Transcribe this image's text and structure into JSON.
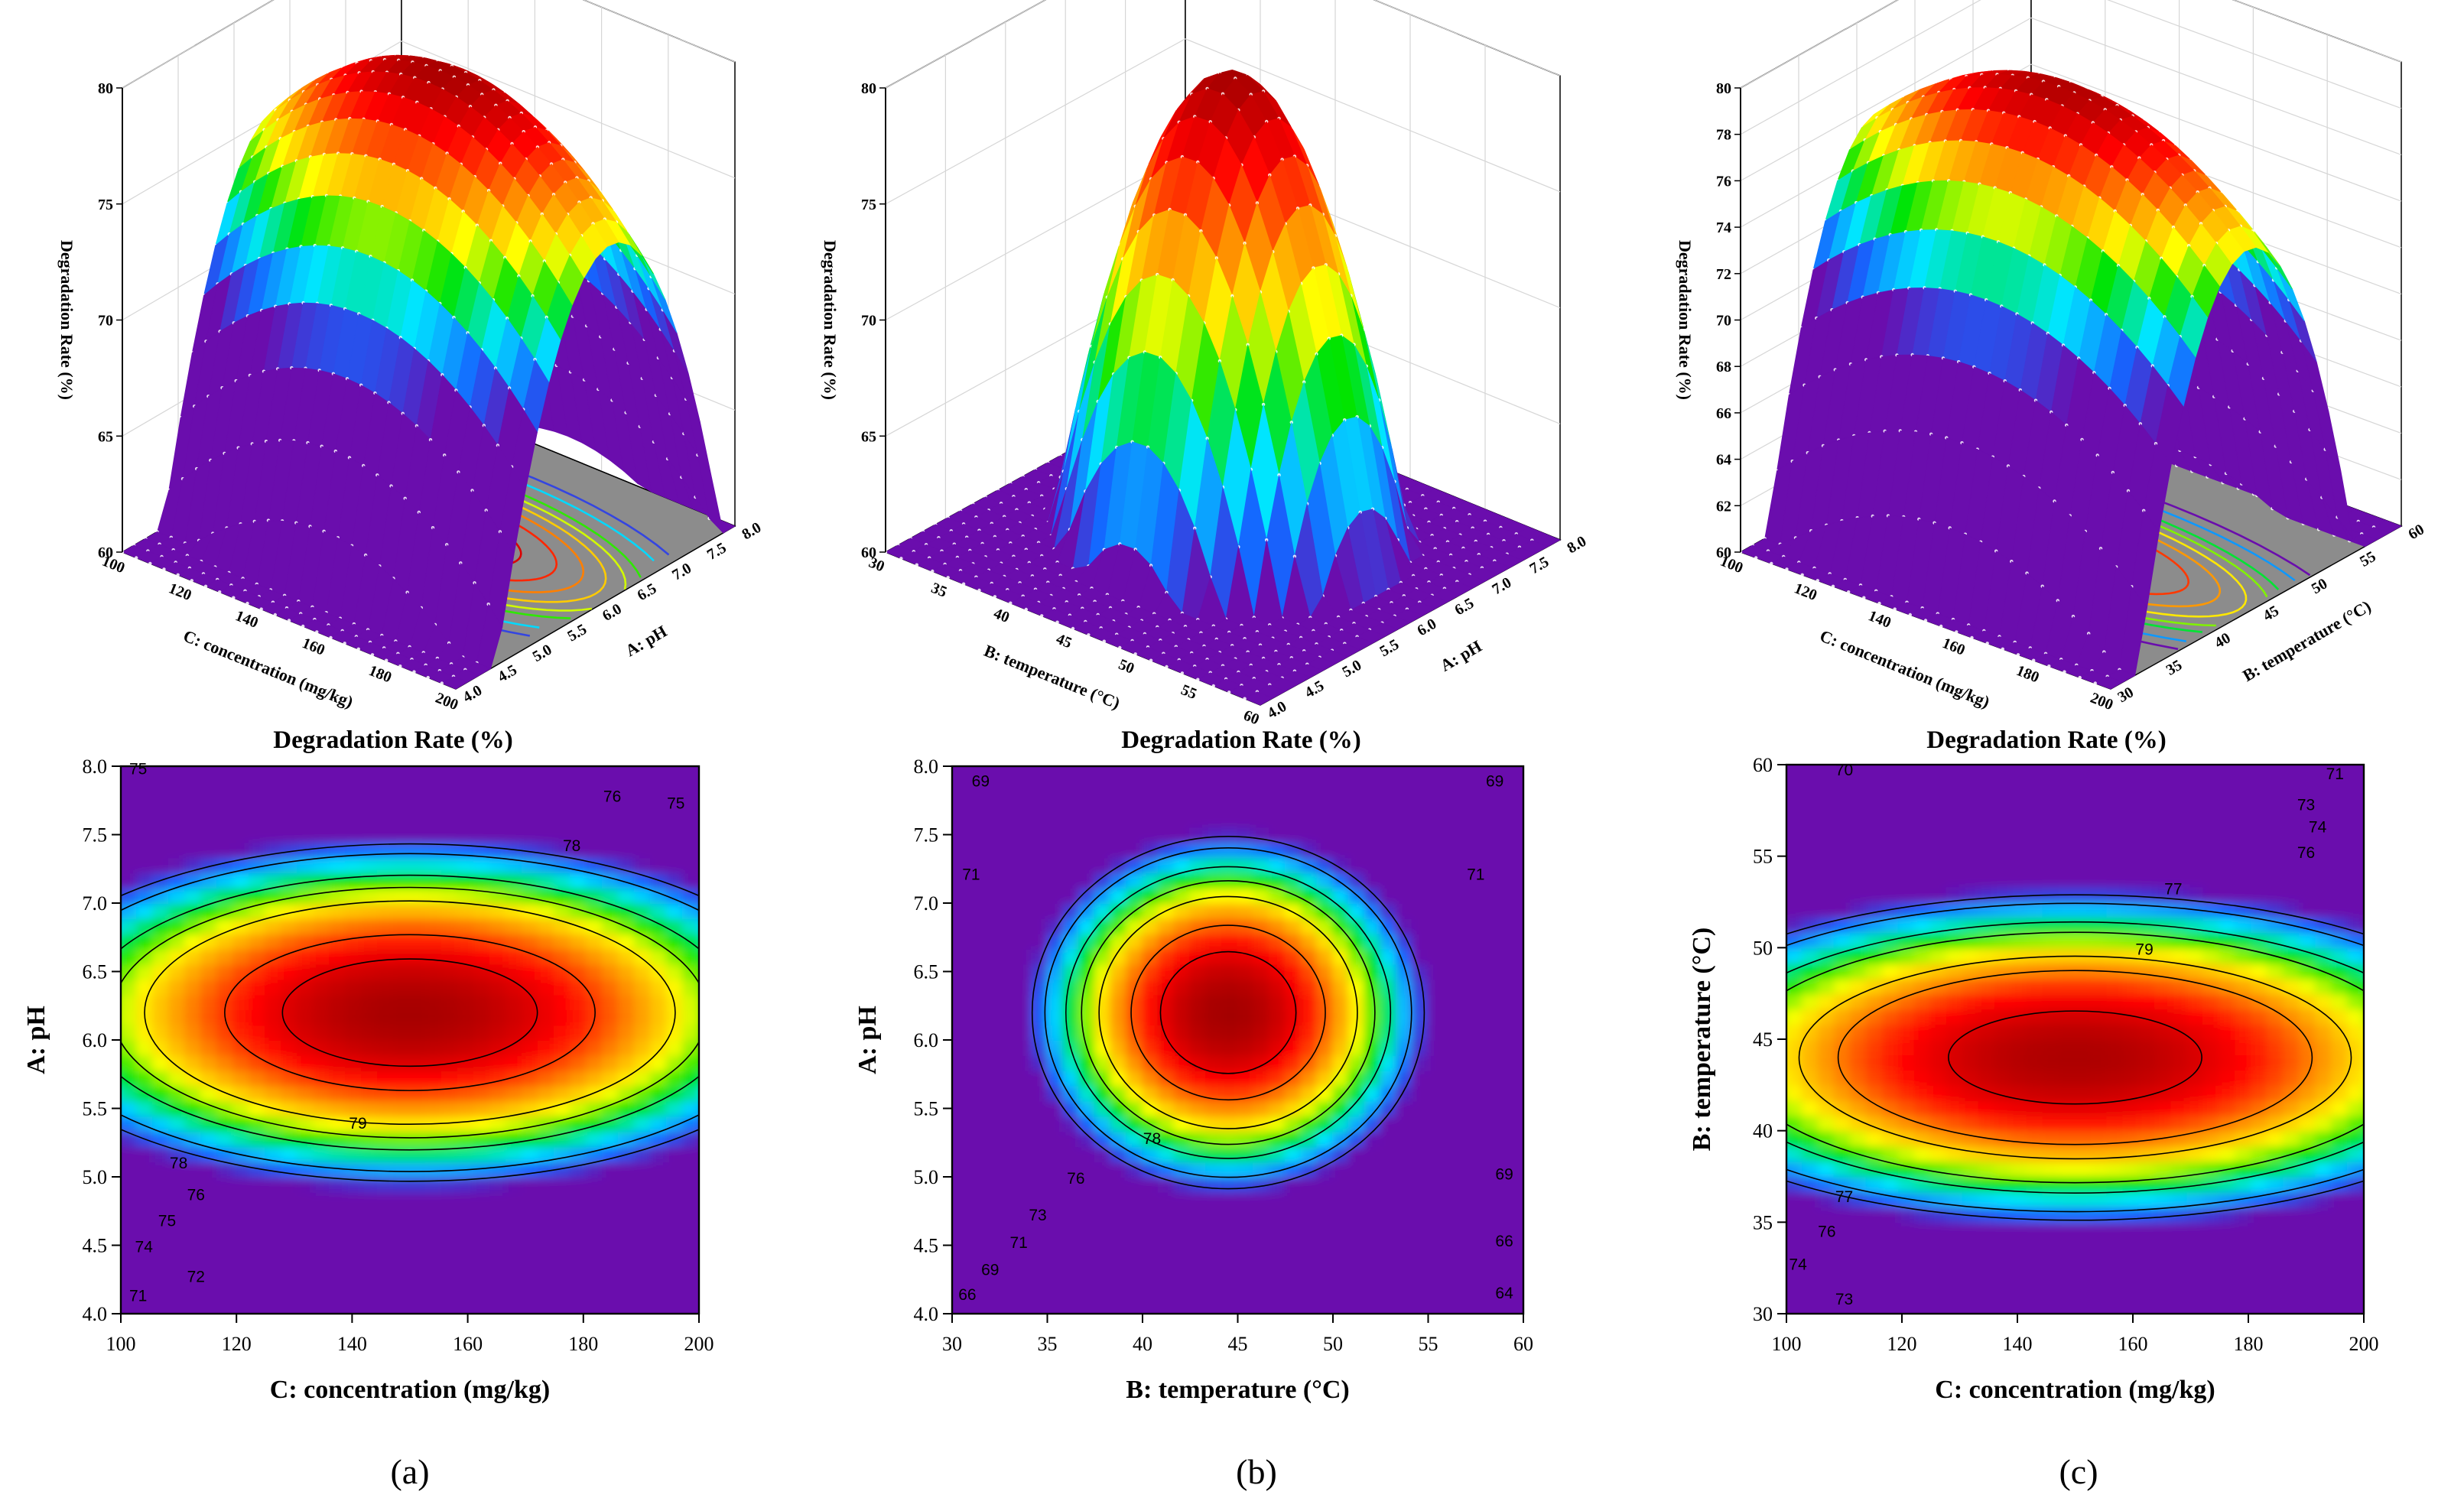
{
  "colors": {
    "scale": [
      "#6a0dad",
      "#1565ff",
      "#00e5ff",
      "#00e400",
      "#ffff00",
      "#ff8c00",
      "#ff0000",
      "#a00000"
    ],
    "floor": "#8c8c8c",
    "contour_line": "#000000"
  },
  "panel_labels": [
    "(a)",
    "(b)",
    "(c)"
  ],
  "chart_data": [
    {
      "id": "a-surface",
      "type": "surface3d",
      "title": "Degradation Rate (%)",
      "xlabel": "C: concentration (mg/kg)",
      "ylabel": "A: pH",
      "zlabel": "Degradation Rate (%)",
      "x_ticks": [
        "100",
        "120",
        "140",
        "160",
        "180",
        "200"
      ],
      "y_ticks": [
        "4.0",
        "4.5",
        "5.0",
        "5.5",
        "6.0",
        "6.5",
        "7.0",
        "7.5",
        "8.0"
      ],
      "z_ticks": [
        "60",
        "65",
        "70",
        "75",
        "80"
      ],
      "xlim": [
        100,
        200
      ],
      "ylim": [
        4.0,
        8.0
      ],
      "zlim": [
        60,
        80
      ],
      "model": {
        "x0": 150,
        "sx": 180,
        "y0": 6.2,
        "sy": 3.2,
        "zmax": 79.9
      }
    },
    {
      "id": "b-surface",
      "type": "surface3d",
      "title": "Degradation Rate (%)",
      "xlabel": "B: temperature (°C)",
      "ylabel": "A: pH",
      "zlabel": "Degradation Rate (%)",
      "x_ticks": [
        "30",
        "35",
        "40",
        "45",
        "50",
        "55",
        "60"
      ],
      "y_ticks": [
        "4.0",
        "4.5",
        "5.0",
        "5.5",
        "6.0",
        "6.5",
        "7.0",
        "7.5",
        "8.0"
      ],
      "z_ticks": [
        "60",
        "65",
        "70",
        "75",
        "80"
      ],
      "xlim": [
        30,
        60
      ],
      "ylim": [
        4.0,
        8.0
      ],
      "zlim": [
        60,
        80
      ],
      "model": {
        "x0": 44.5,
        "sx": 20,
        "y0": 6.2,
        "sy": 2.5,
        "zmax": 79.9
      }
    },
    {
      "id": "c-surface",
      "type": "surface3d",
      "title": "Degradation Rate (%)",
      "xlabel": "C: concentration (mg/kg)",
      "ylabel": "B: temperature (°C)",
      "zlabel": "Degradation Rate (%)",
      "x_ticks": [
        "100",
        "120",
        "140",
        "160",
        "180",
        "200"
      ],
      "y_ticks": [
        "30",
        "35",
        "40",
        "45",
        "50",
        "55",
        "60"
      ],
      "z_ticks": [
        "60",
        "62",
        "64",
        "66",
        "68",
        "70",
        "72",
        "74",
        "76",
        "78",
        "80"
      ],
      "xlim": [
        100,
        200
      ],
      "ylim": [
        30,
        60
      ],
      "zlim": [
        60,
        80
      ],
      "model": {
        "x0": 150,
        "sx": 190,
        "y0": 44,
        "sy": 22,
        "zmax": 79.8
      }
    },
    {
      "id": "a-contour",
      "type": "contour",
      "xlabel": "C: concentration (mg/kg)",
      "ylabel": "A: pH",
      "x_ticks": [
        "100",
        "120",
        "140",
        "160",
        "180",
        "200"
      ],
      "y_ticks": [
        "4.0",
        "4.5",
        "5.0",
        "5.5",
        "6.0",
        "6.5",
        "7.0",
        "7.5",
        "8.0"
      ],
      "xlim": [
        100,
        200
      ],
      "ylim": [
        4.0,
        8.0
      ],
      "model": {
        "x0": 150,
        "sx": 180,
        "y0": 6.2,
        "sy": 3.2,
        "zmax": 79.9
      },
      "levels": [
        71,
        72,
        74,
        75,
        76,
        78,
        79
      ],
      "contour_labels": [
        {
          "text": "75",
          "x": 103,
          "y": 7.98
        },
        {
          "text": "75",
          "x": 196,
          "y": 7.73
        },
        {
          "text": "76",
          "x": 185,
          "y": 7.78
        },
        {
          "text": "78",
          "x": 178,
          "y": 7.42
        },
        {
          "text": "79",
          "x": 141,
          "y": 5.39
        },
        {
          "text": "78",
          "x": 110,
          "y": 5.1
        },
        {
          "text": "76",
          "x": 113,
          "y": 4.87
        },
        {
          "text": "75",
          "x": 108,
          "y": 4.68
        },
        {
          "text": "74",
          "x": 104,
          "y": 4.49
        },
        {
          "text": "72",
          "x": 113,
          "y": 4.27
        },
        {
          "text": "71",
          "x": 103,
          "y": 4.13
        }
      ]
    },
    {
      "id": "b-contour",
      "type": "contour",
      "xlabel": "B: temperature (°C)",
      "ylabel": "A: pH",
      "x_ticks": [
        "30",
        "35",
        "40",
        "45",
        "50",
        "55",
        "60"
      ],
      "y_ticks": [
        "4.0",
        "4.5",
        "5.0",
        "5.5",
        "6.0",
        "6.5",
        "7.0",
        "7.5",
        "8.0"
      ],
      "xlim": [
        30,
        60
      ],
      "ylim": [
        4.0,
        8.0
      ],
      "model": {
        "x0": 44.5,
        "sx": 20,
        "y0": 6.2,
        "sy": 2.5,
        "zmax": 79.9
      },
      "levels": [
        64,
        66,
        69,
        71,
        73,
        76,
        78
      ],
      "contour_labels": [
        {
          "text": "69",
          "x": 31.5,
          "y": 7.89
        },
        {
          "text": "69",
          "x": 58.5,
          "y": 7.89
        },
        {
          "text": "71",
          "x": 31,
          "y": 7.21
        },
        {
          "text": "71",
          "x": 57.5,
          "y": 7.21
        },
        {
          "text": "78",
          "x": 40.5,
          "y": 5.28
        },
        {
          "text": "76",
          "x": 36.5,
          "y": 4.99
        },
        {
          "text": "73",
          "x": 34.5,
          "y": 4.72
        },
        {
          "text": "71",
          "x": 33.5,
          "y": 4.52
        },
        {
          "text": "69",
          "x": 32,
          "y": 4.32
        },
        {
          "text": "66",
          "x": 30.8,
          "y": 4.14
        },
        {
          "text": "69",
          "x": 59,
          "y": 5.02
        },
        {
          "text": "66",
          "x": 59,
          "y": 4.53
        },
        {
          "text": "64",
          "x": 59,
          "y": 4.15
        }
      ]
    },
    {
      "id": "c-contour",
      "type": "contour",
      "xlabel": "C: concentration (mg/kg)",
      "ylabel": "B: temperature (°C)",
      "x_ticks": [
        "100",
        "120",
        "140",
        "160",
        "180",
        "200"
      ],
      "y_ticks": [
        "30",
        "35",
        "40",
        "45",
        "50",
        "55",
        "60"
      ],
      "xlim": [
        100,
        200
      ],
      "ylim": [
        30,
        60
      ],
      "model": {
        "x0": 150,
        "sx": 190,
        "y0": 44,
        "sy": 22,
        "zmax": 79.8
      },
      "levels": [
        70,
        71,
        73,
        74,
        76,
        77,
        79
      ],
      "contour_labels": [
        {
          "text": "70",
          "x": 110,
          "y": 59.7
        },
        {
          "text": "71",
          "x": 195,
          "y": 59.5
        },
        {
          "text": "73",
          "x": 190,
          "y": 57.8
        },
        {
          "text": "74",
          "x": 192,
          "y": 56.6
        },
        {
          "text": "76",
          "x": 190,
          "y": 55.2
        },
        {
          "text": "77",
          "x": 167,
          "y": 53.2
        },
        {
          "text": "79",
          "x": 162,
          "y": 49.9
        },
        {
          "text": "77",
          "x": 110,
          "y": 36.4
        },
        {
          "text": "76",
          "x": 107,
          "y": 34.5
        },
        {
          "text": "74",
          "x": 102,
          "y": 32.7
        },
        {
          "text": "73",
          "x": 110,
          "y": 30.8
        }
      ]
    }
  ]
}
